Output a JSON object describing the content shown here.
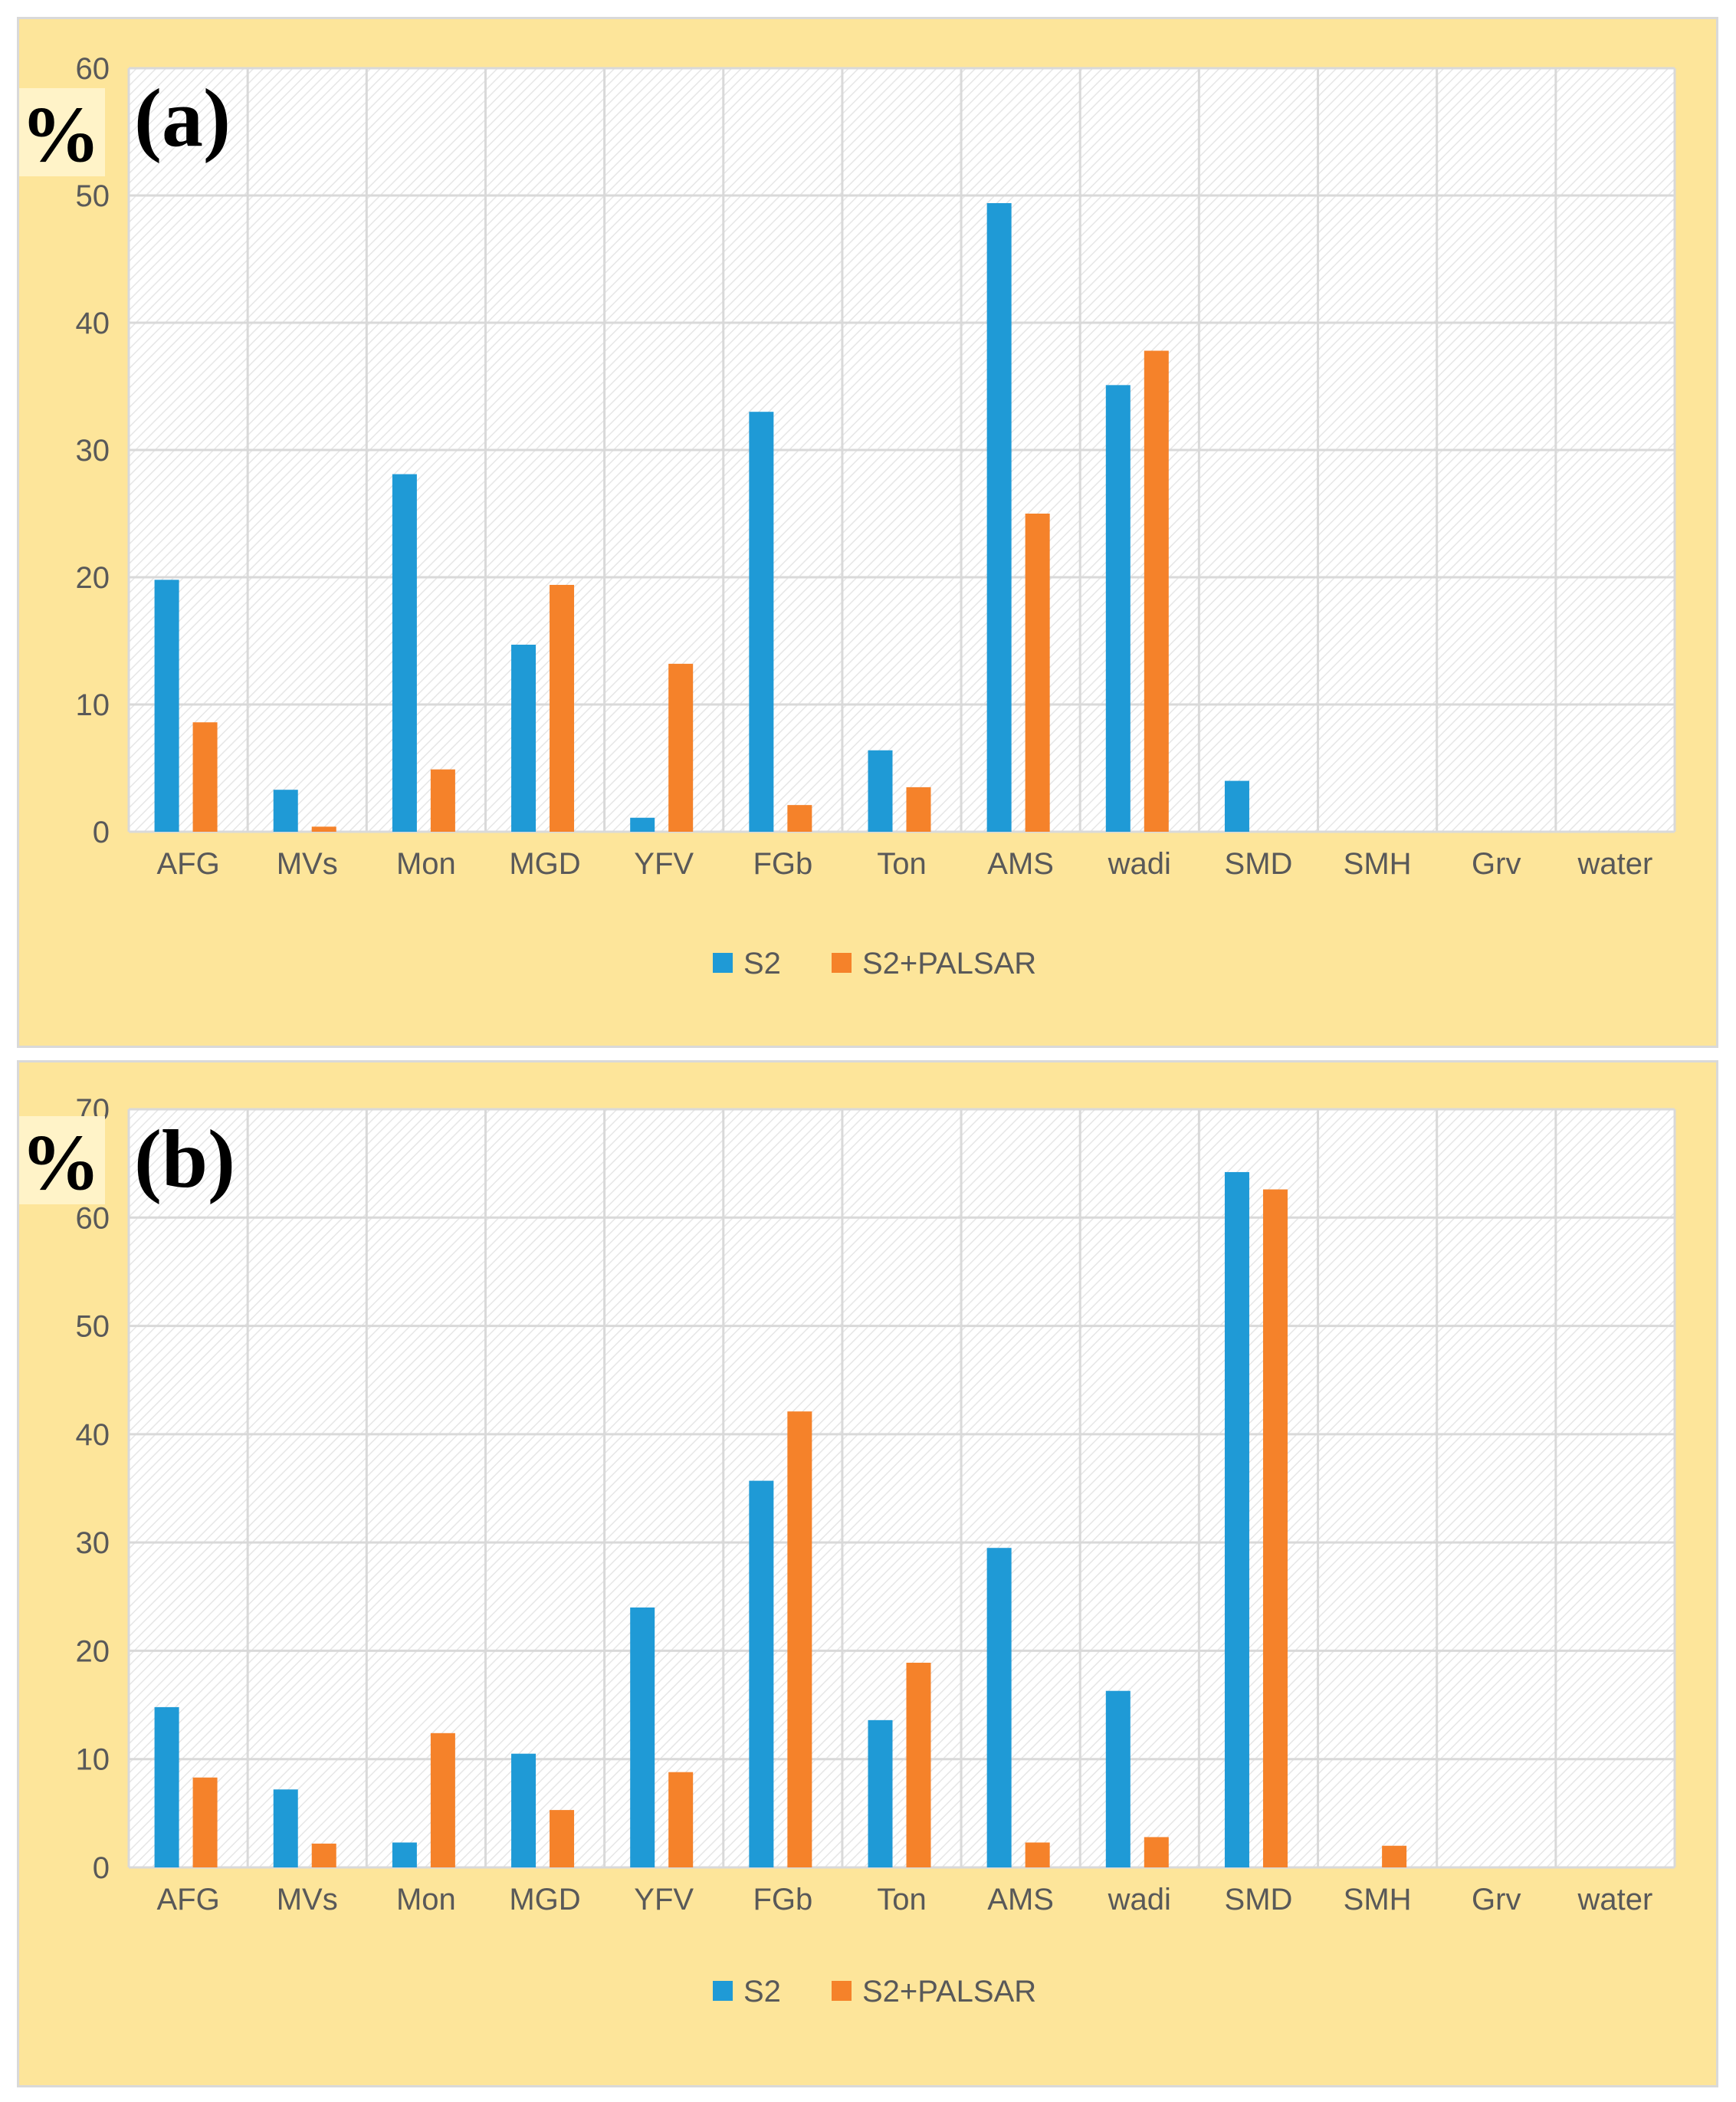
{
  "colors": {
    "s2": "#1f9ad6",
    "s2_palsar": "#f5822a",
    "panel_bg": "#fde59a",
    "gridline": "#d9d9d9",
    "tick_text": "#595959"
  },
  "chart_data": [
    {
      "type": "bar",
      "panel_label": "(a)",
      "unit_label": "%",
      "categories": [
        "AFG",
        "MVs",
        "Mon",
        "MGD",
        "YFV",
        "FGb",
        "Ton",
        "AMS",
        "wadi",
        "SMD",
        "SMH",
        "Grv",
        "water"
      ],
      "series": [
        {
          "name": "S2",
          "values": [
            19.8,
            3.3,
            28.1,
            14.7,
            1.1,
            33.0,
            6.4,
            49.4,
            35.1,
            4.0,
            0,
            0,
            0
          ]
        },
        {
          "name": "S2+PALSAR",
          "values": [
            8.6,
            0.4,
            4.9,
            19.4,
            13.2,
            2.1,
            3.5,
            25.0,
            37.8,
            0,
            0,
            0,
            0
          ]
        }
      ],
      "ylim": [
        0,
        60
      ],
      "yticks": [
        0,
        10,
        20,
        30,
        40,
        50,
        60
      ],
      "ytick_labels": [
        "0",
        "10",
        "20",
        "30",
        "40",
        "50",
        "60"
      ],
      "grid": true,
      "legend": "bottom-center"
    },
    {
      "type": "bar",
      "panel_label": "(b)",
      "unit_label": "%",
      "categories": [
        "AFG",
        "MVs",
        "Mon",
        "MGD",
        "YFV",
        "FGb",
        "Ton",
        "AMS",
        "wadi",
        "SMD",
        "SMH",
        "Grv",
        "water"
      ],
      "series": [
        {
          "name": "S2",
          "values": [
            14.8,
            7.2,
            2.3,
            10.5,
            24.0,
            35.7,
            13.6,
            29.5,
            16.3,
            64.2,
            0,
            0,
            0
          ]
        },
        {
          "name": "S2+PALSAR",
          "values": [
            8.3,
            2.2,
            12.4,
            5.3,
            8.8,
            42.1,
            18.9,
            2.3,
            2.8,
            62.6,
            2.0,
            0,
            0
          ]
        }
      ],
      "ylim": [
        0,
        70
      ],
      "yticks": [
        0,
        10,
        20,
        30,
        40,
        50,
        60,
        70
      ],
      "ytick_labels": [
        "0",
        "10",
        "20",
        "30",
        "40",
        "50",
        "60",
        "70"
      ],
      "grid": true,
      "legend": "bottom-center"
    }
  ]
}
